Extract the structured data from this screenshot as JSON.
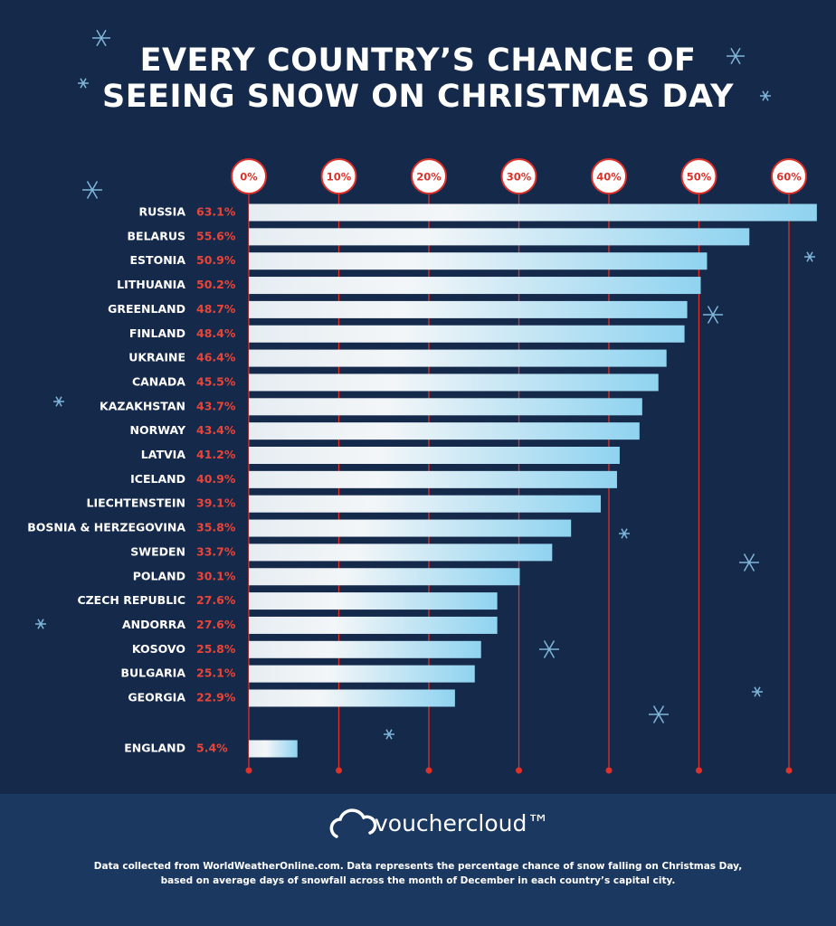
{
  "chart_data": {
    "type": "bar",
    "orientation": "horizontal",
    "title": [
      "EVERY COUNTRY’S CHANCE OF",
      "SEEING SNOW ON CHRISTMAS DAY"
    ],
    "categories": [
      "RUSSIA",
      "BELARUS",
      "ESTONIA",
      "LITHUANIA",
      "GREENLAND",
      "FINLAND",
      "UKRAINE",
      "CANADA",
      "KAZAKHSTAN",
      "NORWAY",
      "LATVIA",
      "ICELAND",
      "LIECHTENSTEIN",
      "BOSNIA & HERZEGOVINA",
      "SWEDEN",
      "POLAND",
      "CZECH REPUBLIC",
      "ANDORRA",
      "KOSOVO",
      "BULGARIA",
      "GEORGIA",
      "ENGLAND"
    ],
    "values": [
      63.1,
      55.6,
      50.9,
      50.2,
      48.7,
      48.4,
      46.4,
      45.5,
      43.7,
      43.4,
      41.2,
      40.9,
      39.1,
      35.8,
      33.7,
      30.1,
      27.6,
      27.6,
      25.8,
      25.1,
      22.9,
      5.4
    ],
    "value_labels": [
      "63.1%",
      "55.6%",
      "50.9%",
      "50.2%",
      "48.7%",
      "48.4%",
      "46.4%",
      "45.5%",
      "43.7%",
      "43.4%",
      "41.2%",
      "40.9%",
      "39.1%",
      "35.8%",
      "33.7%",
      "30.1%",
      "27.6%",
      "27.6%",
      "25.8%",
      "25.1%",
      "22.9%",
      "5.4%"
    ],
    "color": "#8fd3f0",
    "xlim": [
      0,
      65
    ],
    "xticks": [
      {
        "value": 0,
        "label": "0%"
      },
      {
        "value": 10,
        "label": "10%"
      },
      {
        "value": 20,
        "label": "20%"
      },
      {
        "value": 30,
        "label": "30%"
      },
      {
        "value": 40,
        "label": "40%"
      },
      {
        "value": 50,
        "label": "50%"
      },
      {
        "value": 60,
        "label": "60%"
      }
    ],
    "grid": true,
    "brand": "vouchercloud™",
    "source": [
      "Data collected from WorldWeatherOnline.com. Data represents the percentage chance of snow falling on Christmas Day,",
      "based on average days of snowfall across the month of December in each country’s capital city."
    ]
  }
}
